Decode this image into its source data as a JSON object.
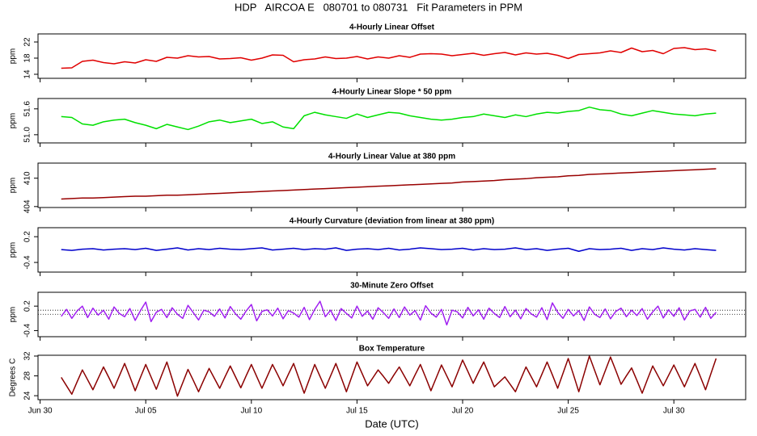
{
  "title": "HDP   AIRCOA E   080701 to 080731   Fit Parameters in PPM",
  "chart_data": [
    {
      "type": "line",
      "title": "4-Hourly Linear Offset",
      "ylabel": "ppm",
      "ylim": [
        13,
        24
      ],
      "yticks": [
        14,
        18,
        22
      ],
      "x": [
        1,
        1.5,
        2,
        2.5,
        3,
        3.5,
        4,
        4.5,
        5,
        5.5,
        6,
        6.5,
        7,
        7.5,
        8,
        8.5,
        9,
        9.5,
        10,
        10.5,
        11,
        11.5,
        12,
        12.5,
        13,
        13.5,
        14,
        14.5,
        15,
        15.5,
        16,
        16.5,
        17,
        17.5,
        18,
        18.5,
        19,
        19.5,
        20,
        20.5,
        21,
        21.5,
        22,
        22.5,
        23,
        23.5,
        24,
        24.5,
        25,
        25.5,
        26,
        26.5,
        27,
        27.5,
        28,
        28.5,
        29,
        29.5,
        30,
        30.5,
        31,
        31.5,
        32
      ],
      "series": [
        {
          "color": "#e00000",
          "values": [
            15.5,
            15.6,
            17.2,
            17.5,
            16.9,
            16.6,
            17.1,
            16.8,
            17.6,
            17.2,
            18.2,
            18.0,
            18.6,
            18.3,
            18.4,
            17.8,
            17.9,
            18.1,
            17.5,
            18.0,
            18.8,
            18.7,
            17.1,
            17.6,
            17.8,
            18.3,
            17.9,
            18.0,
            18.4,
            17.8,
            18.3,
            18.0,
            18.6,
            18.2,
            19.0,
            19.1,
            19.0,
            18.6,
            18.9,
            19.2,
            18.7,
            19.1,
            19.4,
            18.8,
            19.3,
            19.0,
            19.2,
            18.7,
            17.9,
            18.9,
            19.1,
            19.3,
            19.8,
            19.4,
            20.5,
            19.6,
            19.9,
            19.1,
            20.4,
            20.6,
            20.1,
            20.3,
            19.8
          ]
        }
      ]
    },
    {
      "type": "line",
      "title": "4-Hourly Linear Slope * 50 ppm",
      "ylabel": "ppm",
      "ylim": [
        50.81,
        51.84
      ],
      "yticks": [
        {
          "value": 51,
          "label": "51.0"
        },
        51.6
      ],
      "x": [
        1,
        1.5,
        2,
        2.5,
        3,
        3.5,
        4,
        4.5,
        5,
        5.5,
        6,
        6.5,
        7,
        7.5,
        8,
        8.5,
        9,
        9.5,
        10,
        10.5,
        11,
        11.5,
        12,
        12.5,
        13,
        13.5,
        14,
        14.5,
        15,
        15.5,
        16,
        16.5,
        17,
        17.5,
        18,
        18.5,
        19,
        19.5,
        20,
        20.5,
        21,
        21.5,
        22,
        22.5,
        23,
        23.5,
        24,
        24.5,
        25,
        25.5,
        26,
        26.5,
        27,
        27.5,
        28,
        28.5,
        29,
        29.5,
        30,
        30.5,
        31,
        31.5,
        32
      ],
      "series": [
        {
          "color": "#00e000",
          "values": [
            51.42,
            51.4,
            51.25,
            51.22,
            51.3,
            51.34,
            51.36,
            51.28,
            51.22,
            51.14,
            51.24,
            51.18,
            51.12,
            51.2,
            51.3,
            51.34,
            51.28,
            51.32,
            51.36,
            51.26,
            51.3,
            51.18,
            51.14,
            51.44,
            51.52,
            51.46,
            51.42,
            51.38,
            51.48,
            51.4,
            51.46,
            51.52,
            51.5,
            51.44,
            51.4,
            51.36,
            51.34,
            51.36,
            51.4,
            51.42,
            51.48,
            51.44,
            51.4,
            51.46,
            51.42,
            51.48,
            51.52,
            51.5,
            51.54,
            51.56,
            51.64,
            51.58,
            51.56,
            51.48,
            51.44,
            51.5,
            51.56,
            51.52,
            51.48,
            51.46,
            51.44,
            51.48,
            51.5
          ]
        }
      ]
    },
    {
      "type": "line",
      "title": "4-Hourly Linear Value at 380 ppm",
      "ylabel": "ppm",
      "ylim": [
        403.8,
        413.2
      ],
      "yticks": [
        404,
        410
      ],
      "x": [
        1,
        1.5,
        2,
        2.5,
        3,
        3.5,
        4,
        4.5,
        5,
        5.5,
        6,
        6.5,
        7,
        7.5,
        8,
        8.5,
        9,
        9.5,
        10,
        10.5,
        11,
        11.5,
        12,
        12.5,
        13,
        13.5,
        14,
        14.5,
        15,
        15.5,
        16,
        16.5,
        17,
        17.5,
        18,
        18.5,
        19,
        19.5,
        20,
        20.5,
        21,
        21.5,
        22,
        22.5,
        23,
        23.5,
        24,
        24.5,
        25,
        25.5,
        26,
        26.5,
        27,
        27.5,
        28,
        28.5,
        29,
        29.5,
        30,
        30.5,
        31,
        31.5,
        32
      ],
      "series": [
        {
          "color": "#990000",
          "values": [
            405.6,
            405.7,
            405.8,
            405.8,
            405.9,
            406.0,
            406.1,
            406.2,
            406.2,
            406.3,
            406.4,
            406.4,
            406.5,
            406.6,
            406.7,
            406.8,
            406.9,
            407.0,
            407.1,
            407.2,
            407.3,
            407.4,
            407.5,
            407.6,
            407.7,
            407.8,
            407.9,
            408.0,
            408.1,
            408.2,
            408.3,
            408.4,
            408.5,
            408.6,
            408.7,
            408.8,
            408.9,
            409.0,
            409.2,
            409.3,
            409.4,
            409.5,
            409.7,
            409.8,
            409.9,
            410.1,
            410.2,
            410.3,
            410.5,
            410.6,
            410.8,
            410.9,
            411.0,
            411.1,
            411.2,
            411.3,
            411.4,
            411.5,
            411.6,
            411.7,
            411.8,
            411.9,
            412.0
          ]
        }
      ]
    },
    {
      "type": "line",
      "title": "4-Hourly Curvature (deviation from linear at 380 ppm)",
      "ylabel": "ppm",
      "ylim": [
        -0.625,
        0.41
      ],
      "yticks": [
        -0.4,
        0.2
      ],
      "x": [
        1,
        1.5,
        2,
        2.5,
        3,
        3.5,
        4,
        4.5,
        5,
        5.5,
        6,
        6.5,
        7,
        7.5,
        8,
        8.5,
        9,
        9.5,
        10,
        10.5,
        11,
        11.5,
        12,
        12.5,
        13,
        13.5,
        14,
        14.5,
        15,
        15.5,
        16,
        16.5,
        17,
        17.5,
        18,
        18.5,
        19,
        19.5,
        20,
        20.5,
        21,
        21.5,
        22,
        22.5,
        23,
        23.5,
        24,
        24.5,
        25,
        25.5,
        26,
        26.5,
        27,
        27.5,
        28,
        28.5,
        29,
        29.5,
        30,
        30.5,
        31,
        31.5,
        32
      ],
      "series": [
        {
          "color": "#0000cc",
          "values": [
            -0.1,
            -0.12,
            -0.09,
            -0.08,
            -0.11,
            -0.09,
            -0.08,
            -0.1,
            -0.07,
            -0.12,
            -0.09,
            -0.06,
            -0.11,
            -0.08,
            -0.1,
            -0.07,
            -0.09,
            -0.1,
            -0.08,
            -0.06,
            -0.11,
            -0.09,
            -0.07,
            -0.1,
            -0.08,
            -0.09,
            -0.06,
            -0.12,
            -0.09,
            -0.08,
            -0.1,
            -0.07,
            -0.11,
            -0.09,
            -0.06,
            -0.08,
            -0.1,
            -0.09,
            -0.07,
            -0.11,
            -0.08,
            -0.1,
            -0.09,
            -0.06,
            -0.1,
            -0.08,
            -0.12,
            -0.09,
            -0.07,
            -0.14,
            -0.08,
            -0.1,
            -0.09,
            -0.07,
            -0.12,
            -0.08,
            -0.1,
            -0.06,
            -0.09,
            -0.11,
            -0.08,
            -0.1,
            -0.12
          ]
        }
      ]
    },
    {
      "type": "line",
      "title": "30-Minute Zero Offset",
      "ylabel": "ppm",
      "ylim": [
        -0.55,
        0.54
      ],
      "yticks": [
        -0.4,
        0.2
      ],
      "hlines": [
        0.1,
        0.0
      ],
      "x": [
        1,
        1.25,
        1.5,
        1.75,
        2,
        2.25,
        2.5,
        2.75,
        3,
        3.25,
        3.5,
        3.75,
        4,
        4.25,
        4.5,
        4.75,
        5,
        5.25,
        5.5,
        5.75,
        6,
        6.25,
        6.5,
        6.75,
        7,
        7.25,
        7.5,
        7.75,
        8,
        8.25,
        8.5,
        8.75,
        9,
        9.25,
        9.5,
        9.75,
        10,
        10.25,
        10.5,
        10.75,
        11,
        11.25,
        11.5,
        11.75,
        12,
        12.25,
        12.5,
        12.75,
        13,
        13.25,
        13.5,
        13.75,
        14,
        14.25,
        14.5,
        14.75,
        15,
        15.25,
        15.5,
        15.75,
        16,
        16.25,
        16.5,
        16.75,
        17,
        17.25,
        17.5,
        17.75,
        18,
        18.25,
        18.5,
        18.75,
        19,
        19.25,
        19.5,
        19.75,
        20,
        20.25,
        20.5,
        20.75,
        21,
        21.25,
        21.5,
        21.75,
        22,
        22.25,
        22.5,
        22.75,
        23,
        23.25,
        23.5,
        23.75,
        24,
        24.25,
        24.5,
        24.75,
        25,
        25.25,
        25.5,
        25.75,
        26,
        26.25,
        26.5,
        26.75,
        27,
        27.25,
        27.5,
        27.75,
        28,
        28.25,
        28.5,
        28.75,
        29,
        29.25,
        29.5,
        29.75,
        30,
        30.25,
        30.5,
        30.75,
        31,
        31.25,
        31.5,
        31.75,
        32
      ],
      "series": [
        {
          "color": "#a020f0",
          "values": [
            -0.05,
            0.12,
            -0.1,
            0.08,
            0.2,
            -0.08,
            0.15,
            -0.02,
            0.1,
            -0.12,
            0.18,
            0.02,
            -0.06,
            0.14,
            -0.15,
            0.09,
            0.3,
            -0.18,
            0.05,
            0.12,
            -0.08,
            0.16,
            0.0,
            -0.1,
            0.22,
            0.04,
            -0.14,
            0.1,
            0.06,
            -0.05,
            0.13,
            -0.09,
            0.19,
            0.01,
            -0.12,
            0.08,
            0.24,
            -0.16,
            0.07,
            0.11,
            -0.04,
            0.15,
            -0.11,
            0.09,
            0.03,
            -0.07,
            0.17,
            -0.13,
            0.12,
            0.32,
            -0.06,
            0.1,
            -0.15,
            0.14,
            0.02,
            -0.09,
            0.2,
            -0.05,
            0.08,
            -0.12,
            0.16,
            0.04,
            -0.1,
            0.13,
            -0.08,
            0.18,
            -0.02,
            0.09,
            -0.14,
            0.21,
            0.03,
            -0.07,
            0.12,
            -0.26,
            0.1,
            0.06,
            -0.09,
            0.17,
            -0.04,
            0.11,
            -0.12,
            0.15,
            0.02,
            -0.08,
            0.19,
            -0.06,
            0.1,
            -0.11,
            0.14,
            0.01,
            -0.07,
            0.16,
            -0.13,
            0.28,
            0.05,
            -0.1,
            0.12,
            -0.04,
            0.09,
            -0.15,
            0.18,
            0.0,
            -0.08,
            0.13,
            -0.11,
            0.07,
            0.15,
            -0.06,
            0.1,
            -0.03,
            0.14,
            -0.12,
            0.06,
            0.2,
            -0.09,
            0.11,
            -0.05,
            0.16,
            -0.14,
            0.08,
            0.12,
            -0.07,
            0.17,
            -0.1,
            0.05
          ]
        }
      ]
    },
    {
      "type": "line",
      "title": "Box Temperature",
      "ylabel": "Degrees C",
      "ylim": [
        23.2,
        32.16
      ],
      "yticks": [
        24,
        28,
        32
      ],
      "xlabel": "Date (UTC)",
      "xlim": [
        -0.1,
        33.4
      ],
      "xticks": [
        {
          "value": 0,
          "label": "Jun 30"
        },
        {
          "value": 5,
          "label": "Jul 05"
        },
        {
          "value": 10,
          "label": "Jul 10"
        },
        {
          "value": 15,
          "label": "Jul 15"
        },
        {
          "value": 20,
          "label": "Jul 20"
        },
        {
          "value": 25,
          "label": "Jul 25"
        },
        {
          "value": 30,
          "label": "Jul 30"
        }
      ],
      "x": [
        1,
        1.25,
        1.5,
        1.75,
        2,
        2.25,
        2.5,
        2.75,
        3,
        3.25,
        3.5,
        3.75,
        4,
        4.25,
        4.5,
        4.75,
        5,
        5.25,
        5.5,
        5.75,
        6,
        6.25,
        6.5,
        6.75,
        7,
        7.25,
        7.5,
        7.75,
        8,
        8.25,
        8.5,
        8.75,
        9,
        9.25,
        9.5,
        9.75,
        10,
        10.25,
        10.5,
        10.75,
        11,
        11.25,
        11.5,
        11.75,
        12,
        12.25,
        12.5,
        12.75,
        13,
        13.25,
        13.5,
        13.75,
        14,
        14.25,
        14.5,
        14.75,
        15,
        15.25,
        15.5,
        15.75,
        16,
        16.25,
        16.5,
        16.75,
        17,
        17.25,
        17.5,
        17.75,
        18,
        18.25,
        18.5,
        18.75,
        19,
        19.25,
        19.5,
        19.75,
        20,
        20.25,
        20.5,
        20.75,
        21,
        21.25,
        21.5,
        21.75,
        22,
        22.25,
        22.5,
        22.75,
        23,
        23.25,
        23.5,
        23.75,
        24,
        24.25,
        24.5,
        24.75,
        25,
        25.25,
        25.5,
        25.75,
        26,
        26.25,
        26.5,
        26.75,
        27,
        27.25,
        27.5,
        27.75,
        28,
        28.25,
        28.5,
        28.75,
        29,
        29.25,
        29.5,
        29.75,
        30,
        30.25,
        30.5,
        30.75,
        31,
        31.25,
        31.5,
        31.75,
        32
      ],
      "series": [
        {
          "color": "#8b0000",
          "values": [
            27.7,
            26.0,
            24.3,
            26.8,
            29.2,
            27.2,
            25.2,
            27.5,
            29.8,
            27.7,
            25.5,
            28.0,
            30.5,
            27.8,
            25.0,
            27.7,
            30.3,
            27.8,
            25.3,
            28.1,
            30.8,
            27.4,
            23.9,
            26.6,
            29.3,
            27.1,
            24.8,
            27.2,
            29.5,
            27.5,
            25.5,
            27.8,
            30.0,
            27.8,
            25.6,
            28.0,
            30.3,
            27.9,
            25.5,
            27.9,
            30.3,
            28.2,
            26.0,
            28.3,
            30.5,
            27.5,
            24.5,
            27.4,
            30.3,
            27.9,
            25.5,
            28.0,
            30.5,
            27.7,
            24.8,
            27.8,
            30.8,
            28.4,
            26.0,
            27.6,
            29.2,
            27.9,
            26.5,
            28.2,
            29.8,
            27.9,
            26.0,
            28.2,
            30.3,
            27.7,
            25.0,
            27.6,
            30.2,
            28.0,
            25.8,
            28.5,
            31.2,
            28.9,
            26.5,
            28.7,
            30.8,
            28.3,
            25.8,
            26.8,
            27.8,
            26.3,
            24.8,
            27.3,
            29.8,
            27.8,
            25.8,
            28.3,
            30.8,
            28.2,
            25.5,
            28.5,
            31.5,
            28.2,
            24.8,
            28.4,
            32.0,
            29.1,
            26.2,
            29.0,
            31.8,
            29.1,
            26.3,
            28.0,
            29.6,
            27.1,
            24.5,
            27.3,
            30.0,
            28.0,
            26.0,
            28.1,
            30.2,
            28.0,
            25.8,
            28.2,
            30.5,
            27.9,
            25.2,
            28.4,
            31.5
          ]
        }
      ]
    }
  ]
}
